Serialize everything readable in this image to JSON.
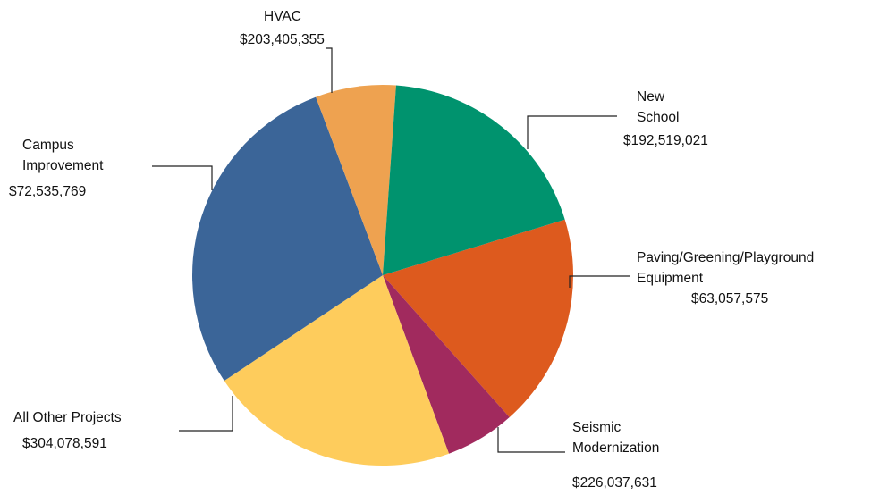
{
  "chart_data": {
    "type": "pie",
    "title": "",
    "slices": [
      {
        "label_lines": [
          "New",
          "School"
        ],
        "value_label": "$192,519,021",
        "value": 192519021,
        "color": "#dd5a1e"
      },
      {
        "label_lines": [
          "Paving/Greening/Playground",
          "Equipment"
        ],
        "value_label": "$63,057,575",
        "value": 63057575,
        "color": "#a12a5e"
      },
      {
        "label_lines": [
          "Seismic",
          "Modernization"
        ],
        "value_label": "$226,037,631",
        "value": 226037631,
        "color": "#fecc5c"
      },
      {
        "label_lines": [
          "All Other Projects"
        ],
        "value_label": "$304,078,591",
        "value": 304078591,
        "color": "#3b6598"
      },
      {
        "label_lines": [
          "Campus",
          "Improvement"
        ],
        "value_label": "$72,535,769",
        "value": 72535769,
        "color": "#eea250"
      },
      {
        "label_lines": [
          "HVAC"
        ],
        "value_label": "$203,405,355",
        "value": 203405355,
        "color": "#00936e"
      }
    ]
  }
}
